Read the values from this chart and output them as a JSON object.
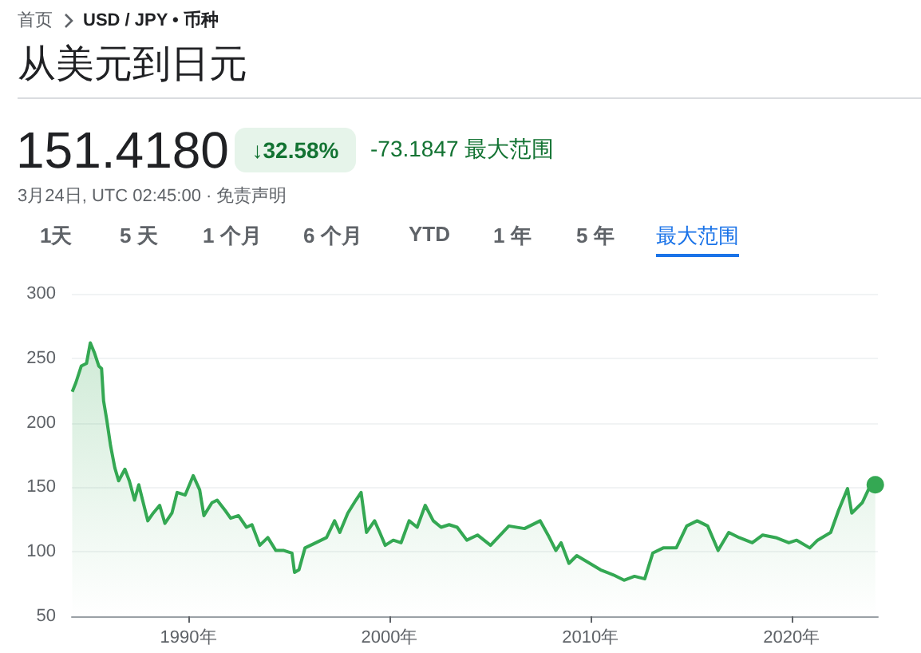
{
  "chart_data": {
    "type": "area",
    "title": "从美元到日元",
    "annotations": [
      "首页",
      "USD / JPY • 币种",
      "151.4180",
      "↓32.58%",
      "-73.1847 最大范围",
      "3月24日, UTC 02:45:00 · 免责声明",
      "1天",
      "5 天",
      "1 个月",
      "6 个月",
      "YTD",
      "1 年",
      "5 年",
      "最大范围"
    ],
    "xlim": [
      1984.2,
      2024.3
    ],
    "xticks": [
      {
        "value": 1990,
        "label": "1990年"
      },
      {
        "value": 2000,
        "label": "2000年"
      },
      {
        "value": 2010,
        "label": "2010年"
      },
      {
        "value": 2020,
        "label": "2020年"
      }
    ],
    "ylim": [
      50,
      300
    ],
    "yticks": [
      50,
      100,
      150,
      200,
      250,
      300
    ],
    "grid": "y",
    "series": [
      {
        "color": "#34a853",
        "x": [
          1984.22,
          1984.4,
          1984.67,
          1984.93,
          1985.12,
          1985.33,
          1985.54,
          1985.68,
          1985.78,
          1985.94,
          1986.13,
          1986.34,
          1986.53,
          1986.84,
          1987.06,
          1987.32,
          1987.53,
          1987.72,
          1987.98,
          1988.25,
          1988.57,
          1988.83,
          1989.18,
          1989.44,
          1989.84,
          1990.24,
          1990.56,
          1990.77,
          1991.17,
          1991.43,
          1991.83,
          1992.1,
          1992.49,
          1992.89,
          1993.16,
          1993.55,
          1993.95,
          1994.35,
          1994.75,
          1995.15,
          1995.28,
          1995.5,
          1995.8,
          1996.34,
          1996.87,
          1997.27,
          1997.53,
          1997.93,
          1998.33,
          1998.59,
          1998.86,
          1999.26,
          1999.52,
          1999.79,
          2000.19,
          2000.58,
          2000.98,
          2001.38,
          2001.78,
          2002.18,
          2002.57,
          2002.97,
          2003.37,
          2003.85,
          2004.38,
          2005.03,
          2005.94,
          2006.72,
          2007.5,
          2007.89,
          2008.28,
          2008.54,
          2008.93,
          2009.32,
          2009.97,
          2010.5,
          2011.15,
          2011.67,
          2012.19,
          2012.7,
          2013.1,
          2013.62,
          2014.27,
          2014.79,
          2015.31,
          2015.83,
          2016.35,
          2016.88,
          2017.4,
          2018.05,
          2018.57,
          2019.22,
          2019.87,
          2020.26,
          2020.91,
          2021.3,
          2021.95,
          2022.34,
          2022.79,
          2023.0,
          2023.52,
          2023.91,
          2024.17
        ],
        "values": [
          224,
          231,
          244,
          246,
          262,
          254,
          244,
          242,
          217,
          202,
          182,
          165,
          155,
          164,
          155,
          140,
          152,
          140,
          124,
          130,
          136,
          122,
          130,
          146,
          144,
          159,
          148,
          128,
          138,
          140,
          132,
          126,
          128,
          119,
          121,
          105,
          111,
          101,
          101,
          99,
          84,
          86,
          103,
          107,
          111,
          124,
          115,
          130,
          140,
          146,
          115,
          124,
          115,
          105,
          109,
          107,
          124,
          119,
          136,
          124,
          119,
          121,
          119,
          109,
          113,
          105,
          120,
          118,
          124,
          113,
          101,
          107,
          91,
          97,
          91,
          86,
          82,
          78,
          81,
          79,
          99,
          103,
          103,
          120,
          124,
          120,
          101,
          115,
          111,
          107,
          113,
          111,
          107,
          109,
          103,
          109,
          115,
          132,
          149,
          130,
          138,
          151,
          152
        ]
      }
    ]
  }
}
